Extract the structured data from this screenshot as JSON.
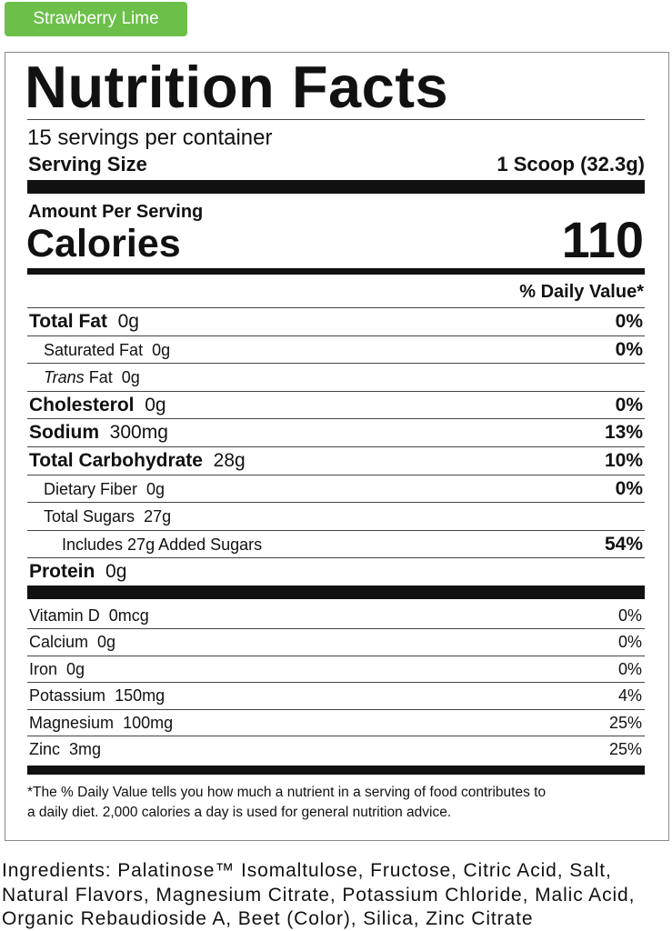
{
  "flavor": "Strawberry Lime",
  "title": "Nutrition Facts",
  "servings": "15 servings per container",
  "serving_size": {
    "label": "Serving Size",
    "value": "1 Scoop (32.3g)"
  },
  "amount_per_serving": "Amount Per Serving",
  "calories": {
    "label": "Calories",
    "value": "110"
  },
  "daily_value_header": "% Daily Value*",
  "nutrients": [
    {
      "name": "Total Fat",
      "amount": "0g",
      "dv": "0%",
      "bold": true,
      "indent": 0
    },
    {
      "name": "Saturated Fat",
      "amount": "0g",
      "dv": "0%",
      "indent": 1
    },
    {
      "italic": "Trans",
      "name": "Fat",
      "amount": "0g",
      "indent": 1
    },
    {
      "name": "Cholesterol",
      "amount": "0g",
      "dv": "0%",
      "bold": true,
      "indent": 0
    },
    {
      "name": "Sodium",
      "amount": "300mg",
      "dv": "13%",
      "bold": true,
      "indent": 0
    },
    {
      "name": "Total Carbohydrate",
      "amount": "28g",
      "dv": "10%",
      "bold": true,
      "indent": 0
    },
    {
      "name": "Dietary Fiber",
      "amount": "0g",
      "dv": "0%",
      "indent": 1
    },
    {
      "name": "Total Sugars",
      "amount": "27g",
      "indent": 1
    },
    {
      "name": "Includes 27g Added Sugars",
      "dv": "54%",
      "indent": 2
    },
    {
      "name": "Protein",
      "amount": "0g",
      "bold": true,
      "indent": 0
    }
  ],
  "vitamins": [
    {
      "name": "Vitamin D",
      "amount": "0mcg",
      "dv": "0%"
    },
    {
      "name": "Calcium",
      "amount": "0g",
      "dv": "0%"
    },
    {
      "name": "Iron",
      "amount": "0g",
      "dv": "0%"
    },
    {
      "name": "Potassium",
      "amount": "150mg",
      "dv": "4%"
    },
    {
      "name": "Magnesium",
      "amount": "100mg",
      "dv": "25%"
    },
    {
      "name": "Zinc",
      "amount": "3mg",
      "dv": "25%"
    }
  ],
  "footnote": [
    "*The % Daily Value tells you how much a nutrient in a serving of food contributes to",
    "a daily diet. 2,000 calories a day is used for general nutrition advice."
  ],
  "ingredients": [
    "Ingredients: Palatinose™ Isomaltulose, Fructose, Citric Acid, Salt,",
    "Natural Flavors, Magnesium Citrate, Potassium Chloride, Malic Acid,",
    "Organic Rebaudioside A, Beet (Color), Silica, Zinc Citrate"
  ]
}
